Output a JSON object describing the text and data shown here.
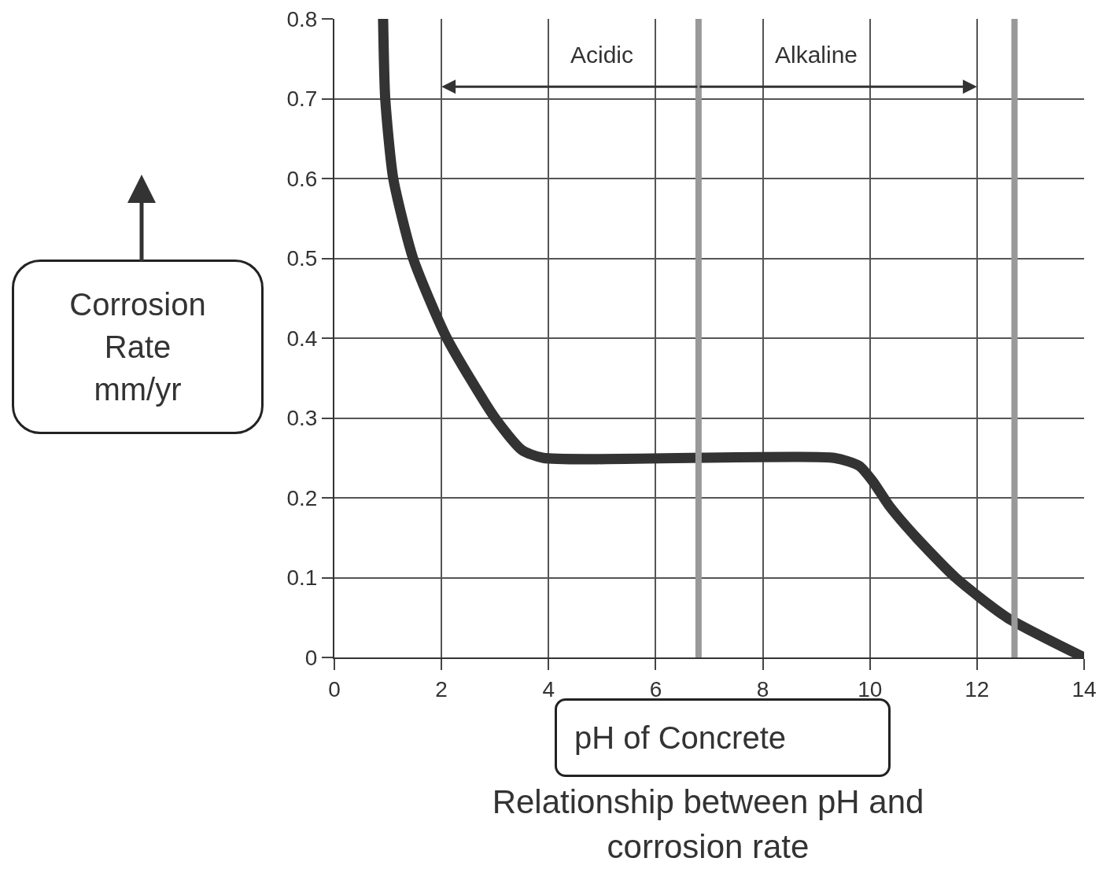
{
  "chart_data": {
    "type": "line",
    "title": "Relationship between pH and corrosion rate",
    "xlabel": "pH of Concrete",
    "ylabel": "Corrosion Rate mm/yr",
    "x": [
      0.91,
      0.95,
      1.1,
      1.47,
      2.1,
      3.0,
      3.5,
      3.9,
      9.33,
      9.8,
      10.06,
      10.36,
      10.87,
      11.6,
      12.56,
      14
    ],
    "series": [
      {
        "color": "#333333",
        "values": [
          0.8,
          0.7,
          0.6,
          0.5,
          0.4,
          0.3,
          0.26,
          0.25,
          0.25,
          0.24,
          0.22,
          0.19,
          0.15,
          0.1,
          0.05,
          0
        ]
      }
    ],
    "xlim": [
      0,
      14
    ],
    "xticks": [
      0,
      2,
      4,
      6,
      8,
      10,
      12,
      14
    ],
    "ylim": [
      0,
      0.8
    ],
    "yticks": [
      0,
      0.1,
      0.2,
      0.3,
      0.4,
      0.5,
      0.6,
      0.7,
      0.8
    ],
    "ref_lines": [
      {
        "axis": "x",
        "value": 6.8,
        "color": "#999999"
      },
      {
        "axis": "x",
        "value": 12.7,
        "color": "#999999"
      }
    ],
    "annotations": [
      "Acidic",
      "Alkaline"
    ],
    "grid": true,
    "marker": "none",
    "line_style": "solid"
  }
}
